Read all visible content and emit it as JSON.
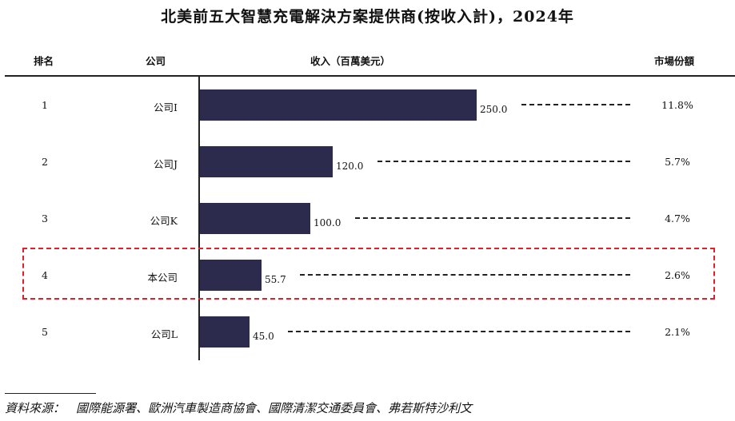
{
  "title": "北美前五大智慧充電解決方案提供商(按收入計)，2024年",
  "headers": {
    "rank": "排名",
    "company": "公司",
    "revenue": "收入（百萬美元）",
    "share": "市場份額"
  },
  "colors": {
    "bar": "#2c2b4e",
    "highlight": "#e0202a"
  },
  "chart_data": {
    "type": "bar",
    "orientation": "horizontal",
    "title": "北美前五大智慧充電解決方案提供商(按收入計)，2024年",
    "xlabel": "收入（百萬美元）",
    "categories": [
      "公司I",
      "公司J",
      "公司K",
      "本公司",
      "公司L"
    ],
    "ranks": [
      "1",
      "2",
      "3",
      "4",
      "5"
    ],
    "values": [
      250.0,
      120.0,
      100.0,
      55.7,
      45.0
    ],
    "value_labels": [
      "250.0",
      "120.0",
      "100.0",
      "55.7",
      "45.0"
    ],
    "market_share": [
      "11.8%",
      "5.7%",
      "4.7%",
      "2.6%",
      "2.1%"
    ],
    "highlighted_category": "本公司",
    "xlim": [
      0,
      250
    ]
  },
  "source": {
    "label": "資料來源：",
    "text": "國際能源署、歐洲汽車製造商協會、國際清潔交通委員會、弗若斯特沙利文"
  }
}
